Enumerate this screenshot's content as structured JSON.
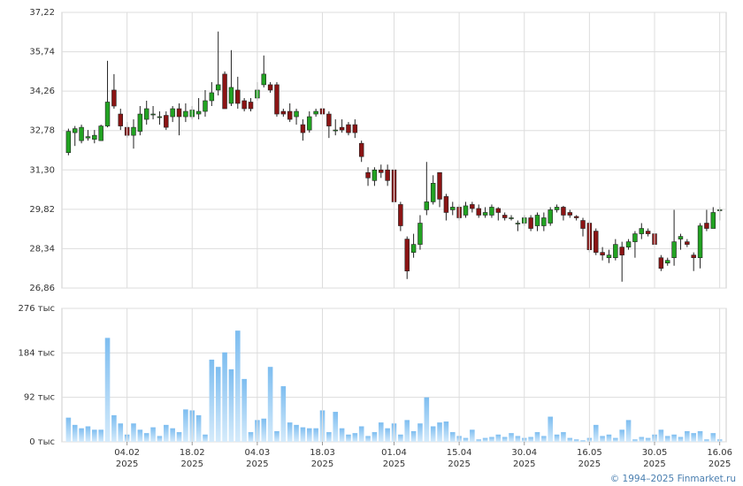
{
  "chart_data": [
    {
      "type": "candlestick",
      "up_color": "#22a322",
      "down_color": "#8b1414",
      "xlim": [
        -1,
        101
      ],
      "ylim": [
        26.86,
        37.22
      ],
      "yticks": [
        {
          "value": 26.86,
          "label": "26,86"
        },
        {
          "value": 28.34,
          "label": "28,34"
        },
        {
          "value": 29.82,
          "label": "29,82"
        },
        {
          "value": 31.3,
          "label": "31,30"
        },
        {
          "value": 32.78,
          "label": "32,78"
        },
        {
          "value": 34.26,
          "label": "34,26"
        },
        {
          "value": 35.74,
          "label": "35,74"
        },
        {
          "value": 37.22,
          "label": "37,22"
        }
      ],
      "grid": true,
      "open": [
        31.95,
        32.7,
        32.4,
        32.5,
        32.45,
        32.4,
        32.95,
        34.3,
        33.4,
        32.9,
        32.6,
        32.75,
        33.2,
        33.4,
        33.3,
        33.35,
        33.3,
        33.6,
        33.3,
        33.3,
        33.4,
        33.5,
        33.9,
        34.3,
        34.9,
        33.8,
        34.3,
        33.9,
        33.85,
        34.0,
        34.5,
        34.5,
        34.5,
        33.5,
        33.5,
        33.3,
        33.0,
        32.8,
        33.4,
        33.6,
        33.4,
        32.8,
        32.9,
        33.0,
        33.0,
        32.3,
        31.2,
        30.9,
        31.3,
        31.3,
        31.3,
        30.0,
        28.7,
        28.2,
        28.5,
        29.8,
        30.1,
        31.2,
        30.3,
        29.8,
        29.9,
        29.6,
        30.0,
        29.85,
        29.6,
        29.6,
        29.85,
        29.6,
        29.5,
        29.3,
        29.3,
        29.5,
        29.2,
        29.2,
        29.3,
        29.8,
        29.9,
        29.7,
        29.55,
        29.4,
        29.3,
        29.0,
        28.2,
        28.0,
        28.0,
        28.4,
        28.4,
        28.6,
        28.9,
        29.0,
        28.9,
        28.0,
        27.8,
        28.0,
        28.7,
        28.6,
        28.1,
        28.0,
        29.3,
        29.1,
        29.8
      ],
      "high": [
        32.85,
        32.95,
        33.0,
        32.8,
        32.8,
        33.0,
        35.4,
        34.9,
        33.6,
        33.1,
        33.2,
        33.7,
        33.9,
        33.7,
        33.5,
        33.5,
        33.7,
        33.8,
        33.8,
        33.7,
        34.0,
        34.3,
        34.6,
        36.5,
        35.0,
        35.8,
        34.8,
        34.0,
        34.0,
        34.6,
        35.6,
        34.6,
        34.6,
        33.6,
        33.8,
        33.6,
        33.2,
        33.5,
        33.6,
        33.8,
        33.5,
        33.2,
        33.2,
        33.1,
        33.2,
        32.4,
        31.4,
        31.4,
        31.5,
        31.5,
        31.4,
        30.1,
        28.8,
        28.9,
        29.6,
        31.6,
        31.1,
        31.2,
        30.4,
        30.1,
        30.0,
        30.1,
        30.1,
        30.0,
        29.9,
        30.0,
        29.9,
        29.7,
        29.6,
        29.4,
        29.6,
        29.6,
        29.7,
        29.7,
        29.9,
        30.0,
        29.95,
        29.8,
        29.6,
        29.5,
        29.4,
        29.1,
        28.4,
        28.3,
        28.7,
        28.6,
        28.7,
        29.0,
        29.3,
        29.1,
        29.0,
        28.1,
        28.0,
        29.8,
        28.9,
        28.7,
        28.2,
        29.3,
        29.8,
        29.9,
        29.9
      ],
      "low": [
        31.85,
        32.2,
        32.3,
        32.4,
        32.3,
        32.4,
        32.9,
        33.6,
        32.8,
        32.5,
        32.1,
        32.6,
        33.0,
        33.2,
        33.0,
        32.8,
        33.1,
        32.6,
        33.1,
        33.2,
        33.2,
        33.3,
        33.7,
        34.1,
        33.6,
        33.7,
        33.6,
        33.5,
        33.5,
        33.9,
        34.4,
        34.2,
        33.3,
        33.3,
        33.1,
        33.0,
        32.4,
        32.7,
        33.3,
        33.2,
        32.5,
        32.6,
        32.7,
        32.6,
        32.5,
        31.6,
        30.7,
        30.7,
        31.0,
        30.7,
        30.0,
        29.0,
        27.2,
        28.0,
        28.3,
        29.6,
        30.0,
        29.9,
        29.4,
        29.6,
        29.4,
        29.5,
        29.7,
        29.5,
        29.5,
        29.5,
        29.4,
        29.4,
        29.4,
        29.0,
        29.2,
        29.0,
        29.0,
        29.0,
        29.2,
        29.7,
        29.4,
        29.5,
        29.4,
        28.8,
        28.2,
        28.1,
        27.9,
        27.8,
        27.9,
        27.1,
        28.3,
        28.0,
        28.7,
        28.8,
        28.4,
        27.5,
        27.7,
        27.7,
        28.3,
        28.4,
        27.5,
        27.6,
        29.0,
        29.1,
        29.4
      ],
      "close": [
        32.75,
        32.85,
        32.9,
        32.55,
        32.6,
        32.95,
        33.85,
        33.7,
        32.95,
        32.6,
        32.9,
        33.4,
        33.6,
        33.4,
        33.3,
        32.9,
        33.6,
        33.3,
        33.5,
        33.55,
        33.5,
        33.9,
        34.2,
        34.5,
        33.6,
        34.4,
        33.8,
        33.6,
        33.6,
        34.3,
        34.9,
        34.3,
        33.4,
        33.4,
        33.2,
        33.5,
        32.7,
        33.3,
        33.5,
        33.4,
        32.95,
        32.8,
        32.8,
        32.7,
        32.7,
        31.8,
        31.0,
        31.3,
        31.2,
        30.9,
        30.1,
        29.2,
        27.5,
        28.5,
        29.3,
        30.1,
        30.8,
        30.2,
        29.7,
        29.9,
        29.5,
        29.95,
        29.85,
        29.6,
        29.7,
        29.9,
        29.7,
        29.5,
        29.5,
        29.3,
        29.5,
        29.1,
        29.6,
        29.5,
        29.8,
        29.9,
        29.6,
        29.6,
        29.5,
        29.1,
        28.3,
        28.2,
        28.1,
        28.1,
        28.5,
        28.1,
        28.6,
        28.9,
        29.1,
        28.9,
        28.5,
        27.6,
        27.9,
        28.6,
        28.8,
        28.5,
        28.0,
        29.2,
        29.1,
        29.7,
        29.8
      ]
    },
    {
      "type": "bar",
      "color": "#8cc8f2",
      "xlim": [
        -1,
        101
      ],
      "ylim": [
        0,
        276
      ],
      "yticks": [
        {
          "value": 0,
          "label": "0 тыс"
        },
        {
          "value": 92,
          "label": "92 тыс"
        },
        {
          "value": 184,
          "label": "184 тыс"
        },
        {
          "value": 276,
          "label": "276 тыс"
        }
      ],
      "grid": true,
      "values": [
        50,
        35,
        28,
        32,
        25,
        25,
        215,
        55,
        38,
        15,
        38,
        25,
        18,
        30,
        12,
        35,
        28,
        20,
        67,
        65,
        55,
        15,
        170,
        155,
        185,
        150,
        230,
        130,
        20,
        45,
        48,
        155,
        22,
        115,
        40,
        35,
        30,
        28,
        28,
        65,
        20,
        62,
        28,
        15,
        18,
        32,
        12,
        20,
        40,
        28,
        38,
        15,
        45,
        22,
        38,
        92,
        32,
        40,
        42,
        20,
        12,
        8,
        25,
        5,
        8,
        10,
        15,
        10,
        18,
        12,
        8,
        10,
        20,
        12,
        52,
        15,
        20,
        8,
        5,
        3,
        8,
        35,
        12,
        15,
        8,
        25,
        45,
        5,
        10,
        8,
        15,
        25,
        12,
        15,
        10,
        22,
        18,
        22,
        5,
        18,
        5
      ],
      "xticks": [
        {
          "value": 9,
          "label": "04.02",
          "year": "2025"
        },
        {
          "value": 19,
          "label": "18.02",
          "year": "2025"
        },
        {
          "value": 29,
          "label": "04.03",
          "year": "2025"
        },
        {
          "value": 39,
          "label": "18.03",
          "year": "2025"
        },
        {
          "value": 50,
          "label": "01.04",
          "year": "2025"
        },
        {
          "value": 60,
          "label": "15.04",
          "year": "2025"
        },
        {
          "value": 70,
          "label": "30.04",
          "year": "2025"
        },
        {
          "value": 80,
          "label": "16.05",
          "year": "2025"
        },
        {
          "value": 90,
          "label": "30.05",
          "year": "2025"
        },
        {
          "value": 100,
          "label": "16.06",
          "year": "2025"
        }
      ],
      "credit": "© 1994–2025 Finmarket.ru"
    }
  ]
}
